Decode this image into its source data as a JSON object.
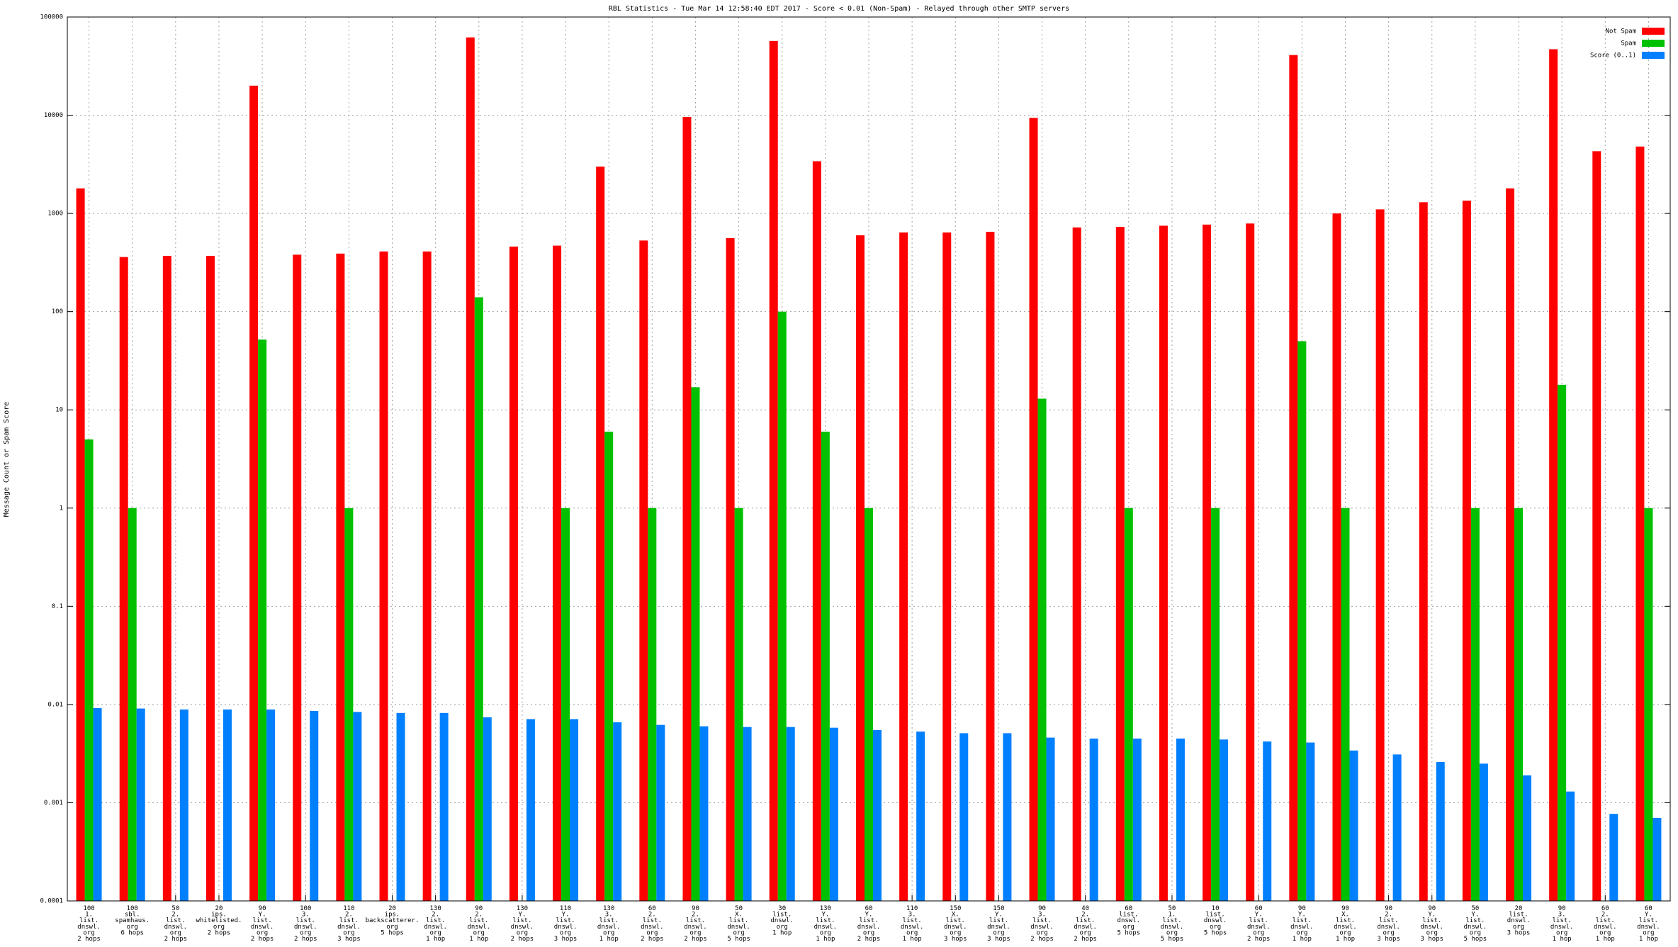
{
  "chart_data": {
    "type": "bar",
    "title": "RBL Statistics - Tue Mar 14 12:58:40 EDT 2017 - Score < 0.01 (Non-Spam) - Relayed through other SMTP servers",
    "ylabel": "Message Count or Spam Score",
    "yscale": "log",
    "grid": true,
    "legend": "top-right",
    "ylim": [
      0.0001,
      100000
    ],
    "yticks": [
      0.0001,
      0.001,
      0.01,
      0.1,
      1,
      10,
      100,
      1000,
      10000,
      100000
    ],
    "categories": [
      [
        "100",
        "1.",
        "list.",
        "dnswl.",
        "org",
        "2 hops"
      ],
      [
        "100",
        "sbl.",
        "spamhaus.",
        "org",
        "6 hops"
      ],
      [
        "50",
        "2.",
        "list.",
        "dnswl.",
        "org",
        "2 hops"
      ],
      [
        "20",
        "ips.",
        "whitelisted.",
        "org",
        "2 hops"
      ],
      [
        "90",
        "Y.",
        "list.",
        "dnswl.",
        "org",
        "2 hops"
      ],
      [
        "100",
        "3.",
        "list.",
        "dnswl.",
        "org",
        "2 hops"
      ],
      [
        "110",
        "2.",
        "list.",
        "dnswl.",
        "org",
        "3 hops"
      ],
      [
        "20",
        "ips.",
        "backscatterer.",
        "org",
        "5 hops"
      ],
      [
        "130",
        "2.",
        "list.",
        "dnswl.",
        "org",
        "1 hop"
      ],
      [
        "90",
        "2.",
        "list.",
        "dnswl.",
        "org",
        "1 hop"
      ],
      [
        "130",
        "Y.",
        "list.",
        "dnswl.",
        "org",
        "2 hops"
      ],
      [
        "110",
        "Y.",
        "list.",
        "dnswl.",
        "org",
        "3 hops"
      ],
      [
        "130",
        "3.",
        "list.",
        "dnswl.",
        "org",
        "1 hop"
      ],
      [
        "60",
        "2.",
        "list.",
        "dnswl.",
        "org",
        "2 hops"
      ],
      [
        "90",
        "2.",
        "list.",
        "dnswl.",
        "org",
        "2 hops"
      ],
      [
        "50",
        "X.",
        "list.",
        "dnswl.",
        "org",
        "5 hops"
      ],
      [
        "30",
        "list.",
        "dnswl.",
        "org",
        "1 hop"
      ],
      [
        "130",
        "Y.",
        "list.",
        "dnswl.",
        "org",
        "1 hop"
      ],
      [
        "60",
        "Y.",
        "list.",
        "dnswl.",
        "org",
        "2 hops"
      ],
      [
        "110",
        "3.",
        "list.",
        "dnswl.",
        "org",
        "1 hop"
      ],
      [
        "150",
        "X.",
        "list.",
        "dnswl.",
        "org",
        "3 hops"
      ],
      [
        "150",
        "Y.",
        "list.",
        "dnswl.",
        "org",
        "3 hops"
      ],
      [
        "90",
        "3.",
        "list.",
        "dnswl.",
        "org",
        "2 hops"
      ],
      [
        "40",
        "2.",
        "list.",
        "dnswl.",
        "org",
        "2 hops"
      ],
      [
        "60",
        "list.",
        "dnswl.",
        "org",
        "5 hops"
      ],
      [
        "50",
        "1.",
        "list.",
        "dnswl.",
        "org",
        "5 hops"
      ],
      [
        "10",
        "list.",
        "dnswl.",
        "org",
        "5 hops"
      ],
      [
        "60",
        "Y.",
        "list.",
        "dnswl.",
        "org",
        "2 hops"
      ],
      [
        "90",
        "Y.",
        "list.",
        "dnswl.",
        "org",
        "1 hop"
      ],
      [
        "90",
        "X.",
        "list.",
        "dnswl.",
        "org",
        "1 hop"
      ],
      [
        "90",
        "2.",
        "list.",
        "dnswl.",
        "org",
        "3 hops"
      ],
      [
        "90",
        "Y.",
        "list.",
        "dnswl.",
        "org",
        "3 hops"
      ],
      [
        "50",
        "Y.",
        "list.",
        "dnswl.",
        "org",
        "5 hops"
      ],
      [
        "20",
        "list.",
        "dnswl.",
        "org",
        "3 hops"
      ],
      [
        "90",
        "3.",
        "list.",
        "dnswl.",
        "org",
        "1 hop"
      ],
      [
        "60",
        "2.",
        "list.",
        "dnswl.",
        "org",
        "1 hop"
      ],
      [
        "60",
        "Y.",
        "list.",
        "dnswl.",
        "org",
        "1 hop"
      ]
    ],
    "series": [
      {
        "name": "Not Spam",
        "color": "#ff0000",
        "values": [
          1800,
          360,
          370,
          370,
          20000,
          380,
          390,
          410,
          410,
          62000,
          460,
          470,
          3000,
          530,
          9600,
          560,
          57000,
          3400,
          600,
          640,
          640,
          650,
          9400,
          720,
          730,
          750,
          770,
          790,
          41000,
          1000,
          1100,
          1300,
          1350,
          1800,
          47000,
          4300,
          4800
        ]
      },
      {
        "name": "Spam",
        "color": "#00c000",
        "values": [
          5,
          1,
          null,
          null,
          52,
          null,
          1,
          null,
          null,
          140,
          null,
          1,
          6,
          1,
          17,
          1,
          100,
          6,
          1,
          null,
          null,
          null,
          13,
          null,
          1,
          null,
          1,
          null,
          50,
          1,
          null,
          null,
          1,
          1,
          18,
          null,
          1
        ]
      },
      {
        "name": "Score (0..1)",
        "color": "#0080ff",
        "values": [
          0.0092,
          0.0091,
          0.0089,
          0.0089,
          0.0089,
          0.0086,
          0.0084,
          0.0082,
          0.0082,
          0.0074,
          0.0071,
          0.0071,
          0.0066,
          0.0062,
          0.006,
          0.0059,
          0.0059,
          0.0058,
          0.0055,
          0.0053,
          0.0051,
          0.0051,
          0.0046,
          0.0045,
          0.0045,
          0.0045,
          0.0044,
          0.0042,
          0.0041,
          0.0034,
          0.0031,
          0.0026,
          0.0025,
          0.0019,
          0.0013,
          0.00077,
          0.0007
        ]
      }
    ]
  }
}
